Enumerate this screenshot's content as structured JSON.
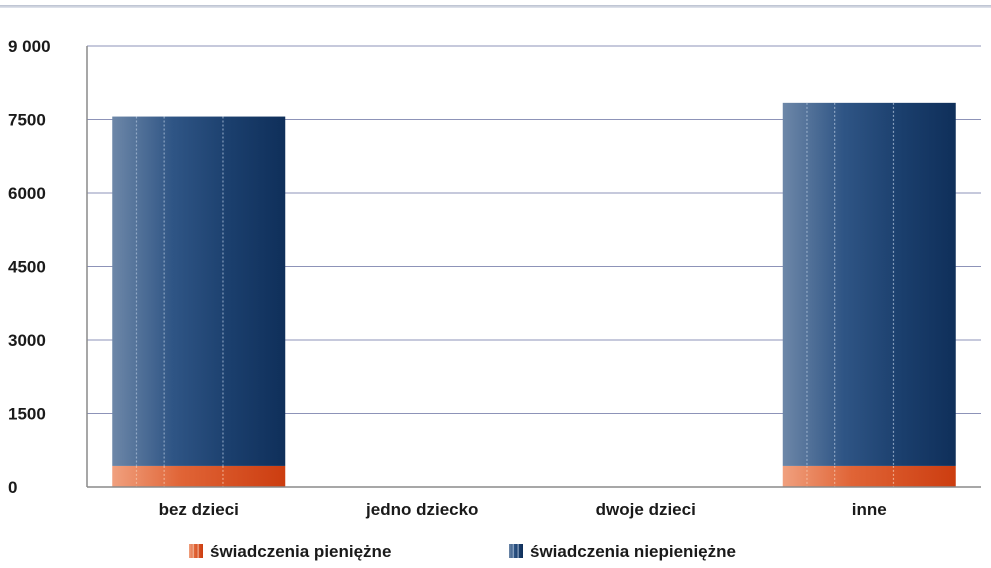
{
  "chart_data": {
    "type": "bar",
    "stacked": true,
    "categories": [
      "bez dzieci",
      "jedno dziecko",
      "dwoje dzieci",
      "inne"
    ],
    "series": [
      {
        "name": "świadczenia pieniężne",
        "values": [
          430,
          0,
          0,
          430
        ],
        "color": "#d4481a"
      },
      {
        "name": "świadczenia niepieniężne",
        "values": [
          7130,
          0,
          0,
          7410
        ],
        "color": "#1f4675"
      }
    ],
    "yticks": [
      "0",
      "1500",
      "3000",
      "4500",
      "6000",
      "7500",
      "9 000"
    ],
    "ylim": [
      0,
      9000
    ],
    "grid": true,
    "legend_position": "bottom"
  }
}
